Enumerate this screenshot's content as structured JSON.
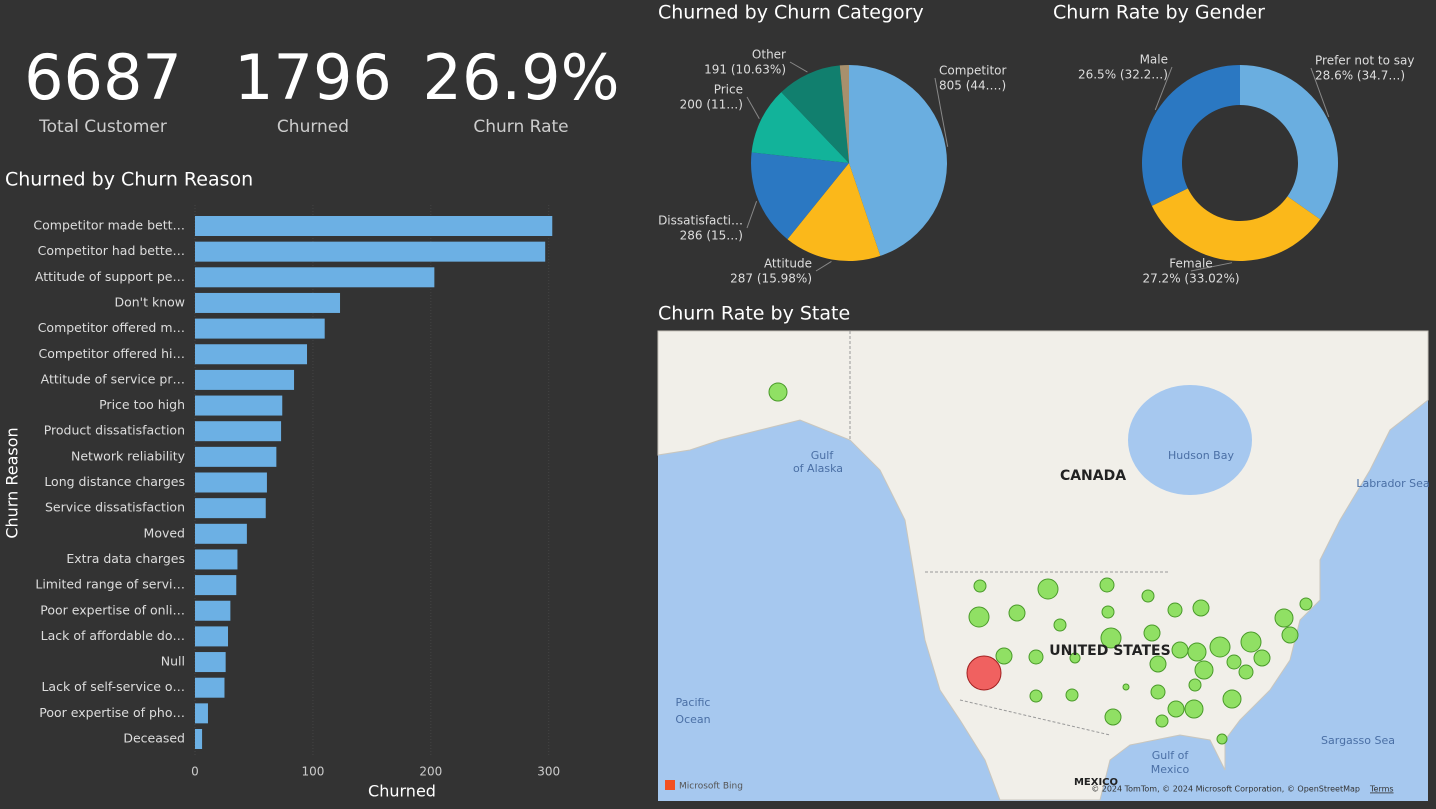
{
  "kpis": [
    {
      "value": "6687",
      "label": "Total Customer"
    },
    {
      "value": "1796",
      "label": "Churned"
    },
    {
      "value": "26.9%",
      "label": "Churn Rate"
    }
  ],
  "chart_data": [
    {
      "type": "bar",
      "orientation": "horizontal",
      "title": "Churned by Churn Reason",
      "x_label": "Churned",
      "y_label": "Churn Reason",
      "categories": [
        "Competitor made bett…",
        "Competitor had bette…",
        "Attitude of support pe…",
        "Don't know",
        "Competitor offered m…",
        "Competitor offered hi…",
        "Attitude of service pr…",
        "Price too high",
        "Product dissatisfaction",
        "Network reliability",
        "Long distance charges",
        "Service dissatisfaction",
        "Moved",
        "Extra data charges",
        "Limited range of servi…",
        "Poor expertise of onli…",
        "Lack of affordable do…",
        "Null",
        "Lack of self-service o…",
        "Poor expertise of pho…",
        "Deceased"
      ],
      "values": [
        303,
        297,
        203,
        123,
        110,
        95,
        84,
        74,
        73,
        69,
        61,
        60,
        44,
        36,
        35,
        30,
        28,
        26,
        25,
        11,
        6
      ],
      "color": "#6cb0e4",
      "xlim": [
        0,
        335
      ],
      "xticks": [
        0,
        100,
        200,
        300
      ],
      "grid": true
    },
    {
      "type": "pie",
      "title": "Churned by Churn Category",
      "categories": [
        "Competitor",
        "Attitude",
        "Dissatisfacti…",
        "Price",
        "Other",
        null
      ],
      "values": [
        805,
        287,
        286,
        200,
        191,
        27
      ],
      "value_labels": [
        "805 (44.…)",
        "287 (15.98%)",
        "286 (15…)",
        "200 (11…)",
        "191 (10.63%)",
        null
      ],
      "colors": [
        "#6aaee0",
        "#fbb81a",
        "#2b78c2",
        "#12b39a",
        "#117f6e",
        "#a7906d"
      ]
    },
    {
      "type": "donut",
      "title": "Churn Rate by Gender",
      "categories": [
        "Prefer not to say",
        "Female",
        "Male"
      ],
      "values": [
        28.6,
        27.2,
        26.5
      ],
      "value_labels": [
        "28.6% (34.7…)",
        "27.2% (33.02%)",
        "26.5% (32.2…)"
      ],
      "colors": [
        "#6aaee0",
        "#fbb81a",
        "#2b78c2"
      ]
    }
  ],
  "map": {
    "title": "Churn Rate by State",
    "labels": {
      "canada": "CANADA",
      "us": "UNITED STATES",
      "hudson": "Hudson Bay",
      "alaska1": "Gulf",
      "alaska2": "of Alaska",
      "pacific1": "Pacific",
      "pacific2": "Ocean",
      "labrador": "Labrador Sea",
      "sargasso": "Sargasso Sea",
      "mexico1": "Gulf of",
      "mexico2": "Mexico",
      "mexico": "MEXICO",
      "bing": "Microsoft Bing",
      "attribution": "© 2024 TomTom, © 2024 Microsoft Corporation, © OpenStreetMap",
      "terms": "Terms"
    }
  }
}
